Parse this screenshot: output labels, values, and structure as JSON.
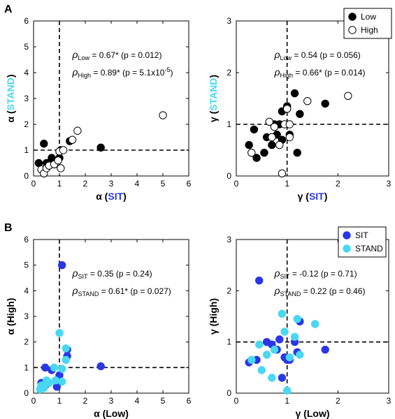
{
  "panel_letters": {
    "a": "A",
    "b": "B"
  },
  "colors": {
    "sit": "#2b37e6",
    "stand": "#48d8f2",
    "low": "#000000",
    "high": "#ffffff"
  },
  "legend_top": {
    "items": [
      "Low",
      "High"
    ]
  },
  "legend_bottom": {
    "items": [
      "SIT",
      "STAND"
    ]
  },
  "chart_data": [
    {
      "id": "A-alpha",
      "type": "scatter",
      "xlabel": {
        "prefix": "α (",
        "colored": "SIT",
        "suffix": ")",
        "color": "#2b37e6"
      },
      "ylabel": {
        "prefix": "α (",
        "colored": "STAND",
        "suffix": ")",
        "color": "#48d8f2"
      },
      "xlim": [
        0,
        6
      ],
      "ylim": [
        0,
        6
      ],
      "xticks": [
        0,
        1,
        2,
        3,
        4,
        5,
        6
      ],
      "yticks": [
        0,
        1,
        2,
        3,
        4,
        5,
        6
      ],
      "ref_lines": {
        "x": 1,
        "y": 1
      },
      "annotations": [
        {
          "rho": "ρ",
          "sub": "Low",
          "text": " = 0.67*  (p = 0.012)"
        },
        {
          "rho": "ρ",
          "sub": "High",
          "text": " = 0.89*  (p = 5.1x10",
          "sup": "-5",
          "tail": ")"
        }
      ],
      "series": [
        {
          "name": "Low",
          "fill": "#000000",
          "points": [
            [
              0.2,
              0.5
            ],
            [
              0.4,
              1.25
            ],
            [
              0.5,
              0.5
            ],
            [
              0.7,
              0.7
            ],
            [
              0.8,
              0.55
            ],
            [
              1.0,
              0.7
            ],
            [
              1.05,
              1.0
            ],
            [
              1.4,
              1.35
            ],
            [
              2.6,
              1.1
            ]
          ]
        },
        {
          "name": "High",
          "fill": "#ffffff",
          "points": [
            [
              0.3,
              0.25
            ],
            [
              0.4,
              0.1
            ],
            [
              0.5,
              0.3
            ],
            [
              0.6,
              0.4
            ],
            [
              0.8,
              0.45
            ],
            [
              0.95,
              0.6
            ],
            [
              1.05,
              0.3
            ],
            [
              1.0,
              0.95
            ],
            [
              1.15,
              1.0
            ],
            [
              1.5,
              1.4
            ],
            [
              1.7,
              1.75
            ],
            [
              5.0,
              2.35
            ]
          ]
        }
      ]
    },
    {
      "id": "A-gamma",
      "type": "scatter",
      "xlabel": {
        "prefix": "γ (",
        "colored": "SIT",
        "suffix": ")",
        "color": "#2b37e6"
      },
      "ylabel": {
        "prefix": "γ (",
        "colored": "STAND",
        "suffix": ")",
        "color": "#48d8f2"
      },
      "xlim": [
        0,
        3
      ],
      "ylim": [
        0,
        3
      ],
      "xticks": [
        0,
        1,
        2,
        3
      ],
      "yticks": [
        0,
        1,
        2,
        3
      ],
      "ref_lines": {
        "x": 1,
        "y": 1
      },
      "annotations": [
        {
          "rho": "ρ",
          "sub": "Low",
          "text": " = 0.54   (p = 0.056)"
        },
        {
          "rho": "ρ",
          "sub": "High",
          "text": " = 0.66*  (p = 0.014)"
        }
      ],
      "series": [
        {
          "name": "Low",
          "fill": "#000000",
          "points": [
            [
              0.25,
              0.6
            ],
            [
              0.35,
              0.9
            ],
            [
              0.4,
              0.35
            ],
            [
              0.55,
              0.45
            ],
            [
              0.6,
              0.75
            ],
            [
              0.7,
              0.6
            ],
            [
              0.75,
              1.0
            ],
            [
              0.8,
              0.8
            ],
            [
              0.85,
              1.0
            ],
            [
              0.9,
              1.25
            ],
            [
              0.9,
              0.7
            ],
            [
              1.0,
              1.35
            ],
            [
              1.05,
              0.8
            ],
            [
              1.15,
              1.6
            ],
            [
              1.2,
              0.45
            ],
            [
              1.25,
              1.2
            ],
            [
              1.75,
              1.4
            ]
          ]
        },
        {
          "name": "High",
          "fill": "#ffffff",
          "points": [
            [
              0.3,
              0.45
            ],
            [
              0.65,
              1.05
            ],
            [
              0.7,
              0.75
            ],
            [
              0.75,
              0.95
            ],
            [
              0.85,
              0.6
            ],
            [
              0.9,
              0.05
            ],
            [
              0.95,
              1.0
            ],
            [
              1.0,
              1.3
            ],
            [
              1.05,
              1.0
            ],
            [
              1.05,
              0.75
            ],
            [
              1.4,
              1.45
            ],
            [
              2.2,
              1.55
            ]
          ]
        }
      ]
    },
    {
      "id": "B-alpha",
      "type": "scatter",
      "xlabel": {
        "prefix": "α (Low)"
      },
      "ylabel": {
        "prefix": "α (High)"
      },
      "xlim": [
        0,
        6
      ],
      "ylim": [
        0,
        6
      ],
      "xticks": [
        0,
        1,
        2,
        3,
        4,
        5,
        6
      ],
      "yticks": [
        0,
        1,
        2,
        3,
        4,
        5,
        6
      ],
      "ref_lines": {
        "x": 1,
        "y": 1
      },
      "annotations": [
        {
          "rho": "ρ",
          "sub": "SIT",
          "text": " = 0.35   (p = 0.24)"
        },
        {
          "rho": "ρ",
          "sub": "STAND",
          "text": " = 0.61*  (p = 0.027)"
        }
      ],
      "series": [
        {
          "name": "SIT",
          "fill": "#2b37e6",
          "points": [
            [
              0.3,
              0.4
            ],
            [
              0.45,
              1.0
            ],
            [
              0.5,
              0.35
            ],
            [
              0.7,
              0.9
            ],
            [
              0.9,
              0.25
            ],
            [
              1.0,
              0.7
            ],
            [
              1.1,
              5.0
            ],
            [
              1.3,
              1.7
            ],
            [
              1.3,
              1.45
            ],
            [
              2.6,
              1.05
            ]
          ]
        },
        {
          "name": "STAND",
          "fill": "#48d8f2",
          "points": [
            [
              0.25,
              0.15
            ],
            [
              0.3,
              0.3
            ],
            [
              0.4,
              0.2
            ],
            [
              0.5,
              0.5
            ],
            [
              0.6,
              0.4
            ],
            [
              0.8,
              1.0
            ],
            [
              0.85,
              0.5
            ],
            [
              1.0,
              2.35
            ],
            [
              1.1,
              0.45
            ],
            [
              1.1,
              0.95
            ],
            [
              1.25,
              1.75
            ],
            [
              1.25,
              1.3
            ]
          ]
        }
      ]
    },
    {
      "id": "B-gamma",
      "type": "scatter",
      "xlabel": {
        "prefix": "γ (Low)"
      },
      "ylabel": {
        "prefix": "γ (High)"
      },
      "xlim": [
        0,
        3
      ],
      "ylim": [
        0,
        3
      ],
      "xticks": [
        0,
        1,
        2,
        3
      ],
      "yticks": [
        0,
        1,
        2,
        3
      ],
      "ref_lines": {
        "x": 1,
        "y": 1
      },
      "annotations": [
        {
          "rho": "ρ",
          "sub": "SIT",
          "text": " = -0.12   (p = 0.71)"
        },
        {
          "rho": "ρ",
          "sub": "STAND",
          "text": " = 0.22   (p = 0.46)"
        }
      ],
      "series": [
        {
          "name": "SIT",
          "fill": "#2b37e6",
          "points": [
            [
              0.25,
              0.6
            ],
            [
              0.4,
              0.65
            ],
            [
              0.45,
              2.2
            ],
            [
              0.6,
              1.0
            ],
            [
              0.7,
              0.95
            ],
            [
              0.8,
              0.85
            ],
            [
              0.85,
              1.05
            ],
            [
              0.9,
              0.3
            ],
            [
              0.95,
              0.7
            ],
            [
              1.0,
              0.65
            ],
            [
              1.05,
              0.65
            ],
            [
              1.15,
              1.0
            ],
            [
              1.2,
              0.8
            ],
            [
              1.25,
              1.4
            ],
            [
              1.75,
              0.85
            ]
          ]
        },
        {
          "name": "STAND",
          "fill": "#48d8f2",
          "points": [
            [
              0.3,
              0.65
            ],
            [
              0.45,
              0.95
            ],
            [
              0.5,
              0.45
            ],
            [
              0.6,
              0.75
            ],
            [
              0.7,
              0.3
            ],
            [
              0.75,
              0.85
            ],
            [
              0.9,
              1.55
            ],
            [
              0.95,
              1.2
            ],
            [
              1.0,
              0.05
            ],
            [
              1.05,
              0.7
            ],
            [
              1.15,
              1.1
            ],
            [
              1.2,
              1.45
            ],
            [
              1.25,
              0.75
            ],
            [
              1.55,
              1.35
            ]
          ]
        }
      ]
    }
  ]
}
